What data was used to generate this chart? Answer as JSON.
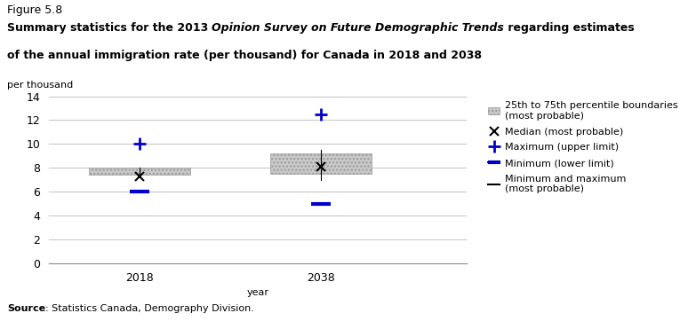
{
  "figure_label": "Figure 5.8",
  "ylabel_text": "per thousand",
  "xlabel_text": "year",
  "source_bold": "Source",
  "source_rest": ": Statistics Canada, Demography Division.",
  "ylim": [
    0,
    14
  ],
  "yticks": [
    0,
    2,
    4,
    6,
    8,
    10,
    12,
    14
  ],
  "years": [
    2018,
    2038
  ],
  "data": {
    "2018": {
      "q25": 7.4,
      "q75": 8.0,
      "median": 7.3,
      "maximum": 10.0,
      "minimum": 6.0,
      "whisker_low": 7.4,
      "whisker_high": 8.0
    },
    "2038": {
      "q25": 7.5,
      "q75": 9.2,
      "median": 8.1,
      "maximum": 12.5,
      "minimum": 5.0,
      "whisker_low": 7.0,
      "whisker_high": 9.5
    }
  },
  "box_color": "#c8c8c8",
  "box_hatch": "....",
  "whisker_color": "#000000",
  "median_color": "#000000",
  "max_color": "#0000cc",
  "min_color": "#0000cc",
  "box_width": 0.28,
  "background_color": "#ffffff",
  "plot_bg_color": "#ffffff",
  "grid_color": "#aaaaaa",
  "title_fontsize": 9,
  "label_fontsize": 8,
  "tick_fontsize": 9,
  "source_fontsize": 8,
  "legend_fontsize": 8
}
